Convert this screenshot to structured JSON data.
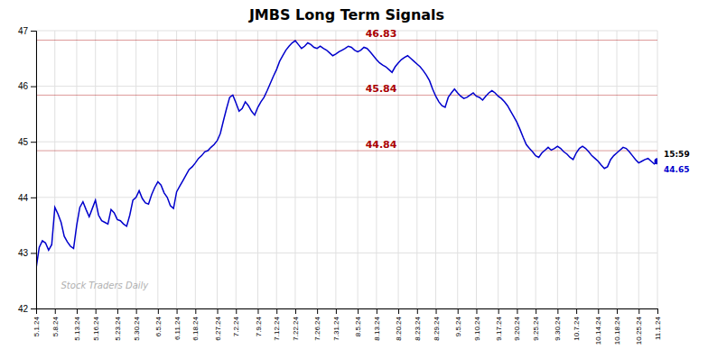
{
  "chart_data": {
    "type": "line",
    "title": "JMBS Long Term Signals",
    "color": "#0000cc",
    "grid": true,
    "ylim": [
      42,
      47
    ],
    "yticks": [
      42,
      43,
      44,
      45,
      46,
      47
    ],
    "watermark": "Stock Traders Daily",
    "annotations": [
      {
        "y": 44.84,
        "text": "44.84",
        "color": "#aa0000"
      },
      {
        "y": 45.84,
        "text": "45.84",
        "color": "#aa0000"
      },
      {
        "y": 46.83,
        "text": "46.83",
        "color": "#aa0000"
      }
    ],
    "endpoint": {
      "value": 44.65,
      "label": "15:59",
      "color": "#0000cc"
    },
    "categories": [
      "5.1.24",
      null,
      null,
      null,
      null,
      null,
      "5.8.24",
      null,
      null,
      null,
      null,
      null,
      null,
      "5.13.24",
      null,
      null,
      null,
      null,
      null,
      "5.16.24",
      null,
      null,
      null,
      null,
      null,
      null,
      "5.23.24",
      null,
      null,
      null,
      null,
      null,
      "5.30.24",
      null,
      null,
      null,
      null,
      null,
      null,
      "6.5.24",
      null,
      null,
      null,
      null,
      null,
      "6.11.24",
      null,
      null,
      null,
      null,
      null,
      "6.18.24",
      null,
      null,
      null,
      null,
      null,
      null,
      "6.27.24",
      null,
      null,
      null,
      null,
      null,
      "7.2.24",
      null,
      null,
      null,
      null,
      null,
      null,
      "7.9.24",
      null,
      null,
      null,
      null,
      null,
      "7.12.24",
      null,
      null,
      null,
      null,
      null,
      "7.22.24",
      null,
      null,
      null,
      null,
      null,
      null,
      "7.26.24",
      null,
      null,
      null,
      null,
      null,
      "7.31.24",
      null,
      null,
      null,
      null,
      null,
      null,
      "8.5.24",
      null,
      null,
      null,
      null,
      null,
      "8.13.24",
      null,
      null,
      null,
      null,
      null,
      null,
      "8.20.24",
      null,
      null,
      null,
      null,
      null,
      "8.23.24",
      null,
      null,
      null,
      null,
      null,
      "8.29.24",
      null,
      null,
      null,
      null,
      null,
      null,
      "9.5.24",
      null,
      null,
      null,
      null,
      null,
      "9.10.24",
      null,
      null,
      null,
      null,
      null,
      null,
      "9.17.24",
      null,
      null,
      null,
      null,
      null,
      "9.20.24",
      null,
      null,
      null,
      null,
      null,
      "9.25.24",
      null,
      null,
      null,
      null,
      null,
      null,
      "9.30.24",
      null,
      null,
      null,
      null,
      null,
      "10.7.24",
      null,
      null,
      null,
      null,
      null,
      null,
      "10.14.24",
      null,
      null,
      null,
      null,
      null,
      "10.18.24",
      null,
      null,
      null,
      null,
      null,
      null,
      "10.25.24",
      null,
      null,
      null,
      null,
      null,
      "11.1.24"
    ],
    "values": [
      42.72,
      43.1,
      43.22,
      43.18,
      43.05,
      43.15,
      43.82,
      43.7,
      43.55,
      43.3,
      43.2,
      43.12,
      43.08,
      43.5,
      43.82,
      43.92,
      43.78,
      43.65,
      43.8,
      43.95,
      43.68,
      43.58,
      43.55,
      43.52,
      43.78,
      43.72,
      43.6,
      43.58,
      43.52,
      43.48,
      43.68,
      43.95,
      44.0,
      44.12,
      43.98,
      43.9,
      43.88,
      44.05,
      44.18,
      44.28,
      44.22,
      44.08,
      44.0,
      43.85,
      43.8,
      44.1,
      44.2,
      44.3,
      44.4,
      44.5,
      44.55,
      44.62,
      44.7,
      44.75,
      44.82,
      44.84,
      44.9,
      44.95,
      45.02,
      45.15,
      45.38,
      45.6,
      45.8,
      45.84,
      45.7,
      45.55,
      45.6,
      45.72,
      45.65,
      45.55,
      45.48,
      45.62,
      45.72,
      45.8,
      45.92,
      46.05,
      46.18,
      46.3,
      46.45,
      46.55,
      46.65,
      46.72,
      46.78,
      46.82,
      46.75,
      46.68,
      46.72,
      46.78,
      46.75,
      46.7,
      46.68,
      46.72,
      46.68,
      46.65,
      46.6,
      46.55,
      46.58,
      46.62,
      46.65,
      46.68,
      46.72,
      46.7,
      46.65,
      46.62,
      46.65,
      46.7,
      46.68,
      46.62,
      46.55,
      46.48,
      46.42,
      46.38,
      46.35,
      46.3,
      46.25,
      46.35,
      46.42,
      46.48,
      46.52,
      46.55,
      46.5,
      46.45,
      46.4,
      46.35,
      46.28,
      46.2,
      46.1,
      45.95,
      45.82,
      45.72,
      45.65,
      45.62,
      45.8,
      45.88,
      45.95,
      45.88,
      45.82,
      45.78,
      45.8,
      45.84,
      45.88,
      45.82,
      45.8,
      45.75,
      45.82,
      45.88,
      45.92,
      45.88,
      45.82,
      45.78,
      45.72,
      45.65,
      45.55,
      45.45,
      45.35,
      45.22,
      45.08,
      44.95,
      44.88,
      44.82,
      44.75,
      44.72,
      44.8,
      44.85,
      44.9,
      44.85,
      44.88,
      44.92,
      44.88,
      44.82,
      44.78,
      44.72,
      44.68,
      44.8,
      44.88,
      44.92,
      44.88,
      44.82,
      44.75,
      44.7,
      44.65,
      44.58,
      44.52,
      44.55,
      44.68,
      44.75,
      44.8,
      44.85,
      44.9,
      44.88,
      44.82,
      44.75,
      44.68,
      44.62,
      44.65,
      44.68,
      44.7,
      44.65,
      44.6,
      44.65
    ]
  }
}
